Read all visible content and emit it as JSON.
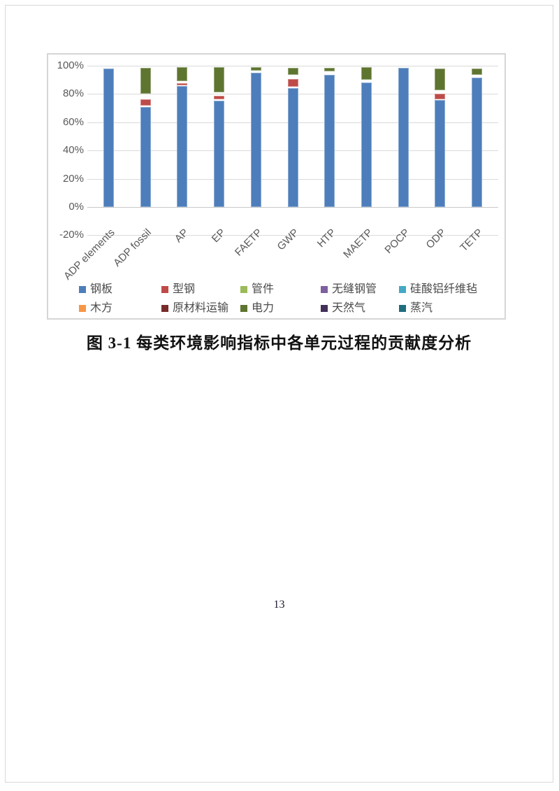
{
  "page": {
    "number": "13"
  },
  "figure": {
    "caption": "图 3-1 每类环境影响指标中各单元过程的贡献度分析"
  },
  "colors": {
    "grid": "#dadada",
    "zero_axis": "#c9c9c9",
    "axis_text": "#595959",
    "chart_border": "#d6d6d6",
    "page_border": "#d8d8d8"
  },
  "chart_data": {
    "type": "bar",
    "stacked": true,
    "title": "",
    "xlabel": "",
    "ylabel": "",
    "unit": "%",
    "ylim": [
      -20,
      100
    ],
    "grid": true,
    "legend_position": "bottom",
    "categories": [
      "ADP elements",
      "ADP fossil",
      "AP",
      "EP",
      "FAETP",
      "GWP",
      "HTP",
      "MAETP",
      "POCP",
      "ODP",
      "TETP"
    ],
    "yticks": [
      {
        "label": "100%",
        "value": 100
      },
      {
        "label": "80%",
        "value": 80
      },
      {
        "label": "60%",
        "value": 60
      },
      {
        "label": "40%",
        "value": 40
      },
      {
        "label": "20%",
        "value": 20
      },
      {
        "label": "0%",
        "value": 0
      },
      {
        "label": "-20%",
        "value": -20
      }
    ],
    "series": [
      {
        "name": "钢板",
        "color": "#4D7EBB"
      },
      {
        "name": "型钢",
        "color": "#BE4B48"
      },
      {
        "name": "管件",
        "color": "#9BBB59"
      },
      {
        "name": "无缝钢管",
        "color": "#7D60A0"
      },
      {
        "name": "硅酸铝纤维毡",
        "color": "#44A8C6"
      },
      {
        "name": "木方",
        "color": "#F79646"
      },
      {
        "name": "原材料运输",
        "color": "#772C2A"
      },
      {
        "name": "电力",
        "color": "#5E7530"
      },
      {
        "name": "天然气",
        "color": "#433159"
      },
      {
        "name": "蒸汽",
        "color": "#1F6E7E"
      }
    ],
    "bars": [
      {
        "category": "ADP elements",
        "segments": [
          {
            "s": "钢板",
            "from": 0,
            "to": 98.0
          }
        ]
      },
      {
        "category": "ADP fossil",
        "segments": [
          {
            "s": "钢板",
            "from": 0,
            "to": 70.8
          },
          {
            "s": "型钢",
            "from": 71.8,
            "to": 76.2
          },
          {
            "s": "电力",
            "from": 80.0,
            "to": 98.3
          }
        ]
      },
      {
        "category": "AP",
        "segments": [
          {
            "s": "钢板",
            "from": 0,
            "to": 85.6
          },
          {
            "s": "型钢",
            "from": 86.3,
            "to": 87.8
          },
          {
            "s": "电力",
            "from": 89.3,
            "to": 99.0
          }
        ]
      },
      {
        "category": "EP",
        "segments": [
          {
            "s": "钢板",
            "from": 0,
            "to": 75.3
          },
          {
            "s": "型钢",
            "from": 76.3,
            "to": 78.5
          },
          {
            "s": "电力",
            "from": 81.0,
            "to": 99.0
          }
        ]
      },
      {
        "category": "FAETP",
        "segments": [
          {
            "s": "钢板",
            "from": 0,
            "to": 95.3
          },
          {
            "s": "电力",
            "from": 96.3,
            "to": 98.8
          }
        ]
      },
      {
        "category": "GWP",
        "segments": [
          {
            "s": "钢板",
            "from": 0,
            "to": 84.3
          },
          {
            "s": "型钢",
            "from": 85.3,
            "to": 90.6
          },
          {
            "s": "电力",
            "from": 93.3,
            "to": 98.4
          }
        ]
      },
      {
        "category": "HTP",
        "segments": [
          {
            "s": "钢板",
            "from": 0,
            "to": 93.6
          },
          {
            "s": "电力",
            "from": 95.9,
            "to": 98.4
          }
        ]
      },
      {
        "category": "MAETP",
        "segments": [
          {
            "s": "钢板",
            "from": 0,
            "to": 88.0
          },
          {
            "s": "电力",
            "from": 90.0,
            "to": 99.0
          }
        ]
      },
      {
        "category": "POCP",
        "segments": [
          {
            "s": "钢板",
            "from": 0,
            "to": 98.7
          }
        ]
      },
      {
        "category": "ODP",
        "segments": [
          {
            "s": "钢板",
            "from": 0,
            "to": 75.6
          },
          {
            "s": "型钢",
            "from": 76.1,
            "to": 80.3
          },
          {
            "s": "电力",
            "from": 82.6,
            "to": 98.2
          }
        ]
      },
      {
        "category": "TETP",
        "segments": [
          {
            "s": "钢板",
            "from": 0,
            "to": 91.8
          },
          {
            "s": "电力",
            "from": 93.4,
            "to": 98.0
          }
        ]
      }
    ]
  }
}
